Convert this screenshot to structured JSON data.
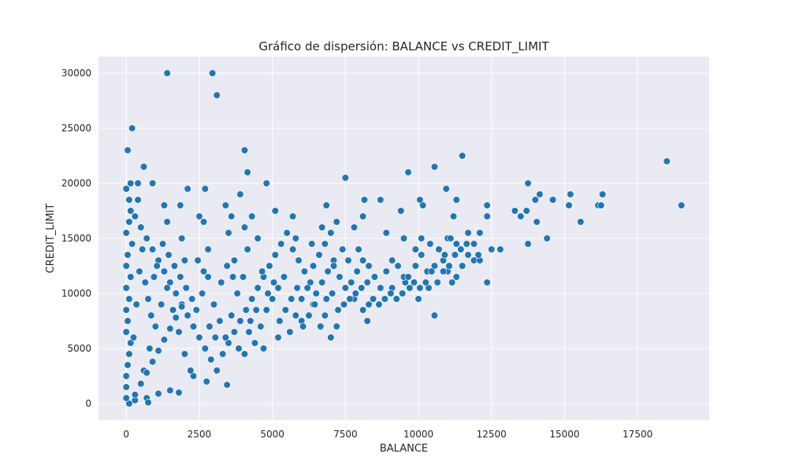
{
  "chart_data": {
    "type": "scatter",
    "title": "Gráfico de dispersión: BALANCE vs CREDIT_LIMIT",
    "xlabel": "BALANCE",
    "ylabel": "CREDIT_LIMIT",
    "xlim": [
      -950,
      19950
    ],
    "ylim": [
      -1500,
      31500
    ],
    "xticks": [
      0,
      2500,
      5000,
      7500,
      10000,
      12500,
      15000,
      17500
    ],
    "yticks": [
      0,
      5000,
      10000,
      15000,
      20000,
      25000,
      30000
    ],
    "xtick_labels": [
      "0",
      "2500",
      "5000",
      "7500",
      "10000",
      "12500",
      "15000",
      "17500"
    ],
    "ytick_labels": [
      "0",
      "5000",
      "10000",
      "15000",
      "20000",
      "25000",
      "30000"
    ],
    "grid": true,
    "colors": {
      "background": "#eaeaf2",
      "point": "#1f77b4"
    },
    "points": [
      [
        1400,
        30000
      ],
      [
        2950,
        30000
      ],
      [
        3100,
        28000
      ],
      [
        200,
        25000
      ],
      [
        50,
        23000
      ],
      [
        4050,
        23000
      ],
      [
        11500,
        22500
      ],
      [
        18500,
        22000
      ],
      [
        600,
        21500
      ],
      [
        10550,
        21500
      ],
      [
        4150,
        21000
      ],
      [
        9650,
        21000
      ],
      [
        7500,
        20500
      ],
      [
        4800,
        20000
      ],
      [
        13750,
        20000
      ],
      [
        400,
        20000
      ],
      [
        900,
        20000
      ],
      [
        0,
        19500
      ],
      [
        2700,
        19500
      ],
      [
        2100,
        19500
      ],
      [
        10950,
        19500
      ],
      [
        3900,
        19000
      ],
      [
        14150,
        19000
      ],
      [
        15200,
        19000
      ],
      [
        16300,
        19000
      ],
      [
        8150,
        18500
      ],
      [
        8700,
        18500
      ],
      [
        10050,
        18500
      ],
      [
        11300,
        18500
      ],
      [
        14000,
        18500
      ],
      [
        14600,
        18500
      ],
      [
        19000,
        18000
      ],
      [
        15150,
        18000
      ],
      [
        16150,
        18000
      ],
      [
        16250,
        18000
      ],
      [
        12350,
        18000
      ],
      [
        10150,
        18000
      ],
      [
        6850,
        18000
      ],
      [
        3400,
        18000
      ],
      [
        1300,
        18000
      ],
      [
        1850,
        18000
      ],
      [
        13300,
        17500
      ],
      [
        13700,
        17500
      ],
      [
        9400,
        17500
      ],
      [
        5100,
        17500
      ],
      [
        2500,
        17000
      ],
      [
        3600,
        17000
      ],
      [
        4300,
        17000
      ],
      [
        5700,
        17000
      ],
      [
        8100,
        17000
      ],
      [
        11200,
        17000
      ],
      [
        12350,
        17000
      ],
      [
        13500,
        17000
      ],
      [
        15550,
        16500
      ],
      [
        14050,
        16500
      ],
      [
        2650,
        16500
      ],
      [
        1400,
        16500
      ],
      [
        7800,
        16000
      ],
      [
        6700,
        16000
      ],
      [
        4050,
        16000
      ],
      [
        8900,
        15500
      ],
      [
        11700,
        15500
      ],
      [
        3500,
        15500
      ],
      [
        9500,
        15000
      ],
      [
        10100,
        15000
      ],
      [
        11000,
        15000
      ],
      [
        14400,
        15000
      ],
      [
        1900,
        15000
      ],
      [
        4500,
        15000
      ],
      [
        5800,
        15000
      ],
      [
        13750,
        14500
      ],
      [
        10400,
        14500
      ],
      [
        6350,
        14500
      ],
      [
        12500,
        14000
      ],
      [
        12800,
        14000
      ],
      [
        9900,
        14000
      ],
      [
        7950,
        14000
      ],
      [
        4150,
        14000
      ],
      [
        2800,
        14000
      ],
      [
        10850,
        13000
      ],
      [
        11900,
        13000
      ],
      [
        12100,
        13000
      ],
      [
        7100,
        13000
      ],
      [
        3700,
        13000
      ],
      [
        2000,
        13000
      ],
      [
        11000,
        12000
      ],
      [
        11300,
        11500
      ],
      [
        10550,
        12500
      ],
      [
        11150,
        11000
      ],
      [
        12350,
        11000
      ],
      [
        10350,
        10500
      ],
      [
        9550,
        11000
      ],
      [
        10000,
        9500
      ],
      [
        9100,
        10500
      ],
      [
        8300,
        9000
      ],
      [
        7800,
        9500
      ],
      [
        8100,
        8500
      ],
      [
        10550,
        8000
      ],
      [
        8250,
        7500
      ],
      [
        7000,
        6000
      ],
      [
        6800,
        8000
      ],
      [
        7200,
        7000
      ],
      [
        6400,
        9000
      ],
      [
        6000,
        7500
      ],
      [
        5200,
        6000
      ],
      [
        4700,
        5000
      ],
      [
        3450,
        1700
      ],
      [
        2750,
        2000
      ],
      [
        2300,
        2500
      ],
      [
        1800,
        1000
      ],
      [
        1500,
        1200
      ],
      [
        1100,
        900
      ],
      [
        700,
        500
      ],
      [
        750,
        100
      ],
      [
        300,
        300
      ],
      [
        100,
        0
      ],
      [
        0,
        500
      ],
      [
        0,
        1500
      ],
      [
        0,
        2500
      ],
      [
        50,
        3500
      ],
      [
        100,
        4500
      ],
      [
        150,
        5500
      ],
      [
        0,
        6500
      ],
      [
        50,
        7500
      ],
      [
        0,
        8500
      ],
      [
        100,
        9500
      ],
      [
        0,
        10500
      ],
      [
        150,
        11500
      ],
      [
        0,
        12500
      ],
      [
        50,
        13500
      ],
      [
        200,
        14500
      ],
      [
        0,
        15500
      ],
      [
        100,
        16500
      ],
      [
        150,
        17500
      ],
      [
        100,
        18500
      ],
      [
        150,
        20000
      ],
      [
        400,
        18500
      ],
      [
        300,
        17000
      ],
      [
        500,
        16000
      ],
      [
        700,
        15000
      ],
      [
        900,
        14000
      ],
      [
        1100,
        13000
      ],
      [
        1300,
        12000
      ],
      [
        1500,
        11000
      ],
      [
        1700,
        10000
      ],
      [
        1900,
        9000
      ],
      [
        2100,
        8000
      ],
      [
        2300,
        7000
      ],
      [
        2500,
        6000
      ],
      [
        2700,
        5000
      ],
      [
        2900,
        4000
      ],
      [
        3100,
        3000
      ],
      [
        3300,
        4500
      ],
      [
        3500,
        5500
      ],
      [
        3700,
        6500
      ],
      [
        3900,
        7500
      ],
      [
        4100,
        8500
      ],
      [
        4300,
        9500
      ],
      [
        4500,
        10500
      ],
      [
        4700,
        11500
      ],
      [
        4900,
        12500
      ],
      [
        5100,
        13500
      ],
      [
        5300,
        14500
      ],
      [
        5500,
        15500
      ],
      [
        5700,
        14000
      ],
      [
        5900,
        13000
      ],
      [
        6100,
        12000
      ],
      [
        6300,
        11000
      ],
      [
        6500,
        10000
      ],
      [
        6700,
        11000
      ],
      [
        6900,
        12000
      ],
      [
        7100,
        12500
      ],
      [
        7300,
        11500
      ],
      [
        7500,
        10500
      ],
      [
        7700,
        11000
      ],
      [
        7900,
        12000
      ],
      [
        8100,
        13000
      ],
      [
        8300,
        12500
      ],
      [
        8500,
        11500
      ],
      [
        8700,
        10500
      ],
      [
        8900,
        12000
      ],
      [
        9100,
        13000
      ],
      [
        9300,
        12500
      ],
      [
        9500,
        11500
      ],
      [
        9700,
        10500
      ],
      [
        9900,
        12500
      ],
      [
        10100,
        13500
      ],
      [
        10300,
        12000
      ],
      [
        10700,
        14000
      ],
      [
        10900,
        13500
      ],
      [
        11100,
        15000
      ],
      [
        11300,
        14500
      ],
      [
        11500,
        12500
      ],
      [
        11700,
        13500
      ],
      [
        11900,
        14500
      ],
      [
        12100,
        15500
      ],
      [
        600,
        3000
      ],
      [
        800,
        5000
      ],
      [
        1000,
        7000
      ],
      [
        1200,
        9000
      ],
      [
        1400,
        10500
      ],
      [
        1600,
        8500
      ],
      [
        1800,
        6500
      ],
      [
        2000,
        4500
      ],
      [
        2200,
        3000
      ],
      [
        2400,
        8500
      ],
      [
        2600,
        10000
      ],
      [
        2800,
        11500
      ],
      [
        3000,
        9000
      ],
      [
        3200,
        7500
      ],
      [
        3400,
        6000
      ],
      [
        3600,
        8000
      ],
      [
        3800,
        10000
      ],
      [
        4000,
        11500
      ],
      [
        4200,
        6500
      ],
      [
        4400,
        5500
      ],
      [
        4600,
        7000
      ],
      [
        4800,
        8500
      ],
      [
        5000,
        9500
      ],
      [
        5200,
        10500
      ],
      [
        5400,
        11500
      ],
      [
        5600,
        6500
      ],
      [
        5800,
        8000
      ],
      [
        6000,
        9500
      ],
      [
        6200,
        10500
      ],
      [
        6400,
        12500
      ],
      [
        6600,
        13500
      ],
      [
        6800,
        14500
      ],
      [
        7000,
        15500
      ],
      [
        7200,
        16500
      ],
      [
        7400,
        14000
      ],
      [
        7600,
        13000
      ],
      [
        300,
        800
      ],
      [
        500,
        1800
      ],
      [
        700,
        2800
      ],
      [
        900,
        3800
      ],
      [
        1100,
        4800
      ],
      [
        1300,
        5800
      ],
      [
        1500,
        6800
      ],
      [
        1700,
        7800
      ],
      [
        1900,
        8800
      ],
      [
        250,
        6000
      ],
      [
        350,
        9000
      ],
      [
        450,
        12000
      ],
      [
        550,
        14000
      ],
      [
        650,
        11000
      ],
      [
        750,
        9500
      ],
      [
        850,
        8000
      ],
      [
        950,
        11500
      ],
      [
        1050,
        12500
      ],
      [
        1250,
        14500
      ],
      [
        1450,
        13500
      ],
      [
        1650,
        12500
      ],
      [
        1850,
        11500
      ],
      [
        2050,
        10500
      ],
      [
        2250,
        9500
      ],
      [
        2450,
        13000
      ],
      [
        2650,
        12000
      ],
      [
        2850,
        7000
      ],
      [
        3050,
        6000
      ],
      [
        3250,
        11000
      ],
      [
        3450,
        12500
      ],
      [
        3650,
        11500
      ],
      [
        3850,
        5000
      ],
      [
        4050,
        4500
      ],
      [
        4250,
        7500
      ],
      [
        4450,
        8500
      ],
      [
        4650,
        12000
      ],
      [
        4850,
        10000
      ],
      [
        5050,
        11000
      ],
      [
        5250,
        7500
      ],
      [
        5450,
        8500
      ],
      [
        5650,
        9500
      ],
      [
        5850,
        10500
      ],
      [
        6050,
        7000
      ],
      [
        6250,
        8000
      ],
      [
        6450,
        9000
      ],
      [
        6650,
        7000
      ],
      [
        6850,
        9500
      ],
      [
        7050,
        10000
      ],
      [
        7250,
        8500
      ],
      [
        7450,
        9000
      ],
      [
        7650,
        9500
      ],
      [
        7850,
        10000
      ],
      [
        8050,
        10500
      ],
      [
        8250,
        11000
      ],
      [
        8450,
        9500
      ],
      [
        8650,
        9000
      ],
      [
        8850,
        9500
      ],
      [
        9050,
        10000
      ],
      [
        9250,
        9500
      ],
      [
        9450,
        10000
      ],
      [
        9650,
        11500
      ],
      [
        9850,
        11000
      ],
      [
        10050,
        10500
      ],
      [
        10250,
        11000
      ],
      [
        10450,
        12000
      ],
      [
        10650,
        11000
      ],
      [
        10850,
        12000
      ],
      [
        11050,
        12500
      ],
      [
        11250,
        13500
      ],
      [
        11450,
        14000
      ],
      [
        11650,
        14500
      ],
      [
        12050,
        13500
      ]
    ]
  }
}
